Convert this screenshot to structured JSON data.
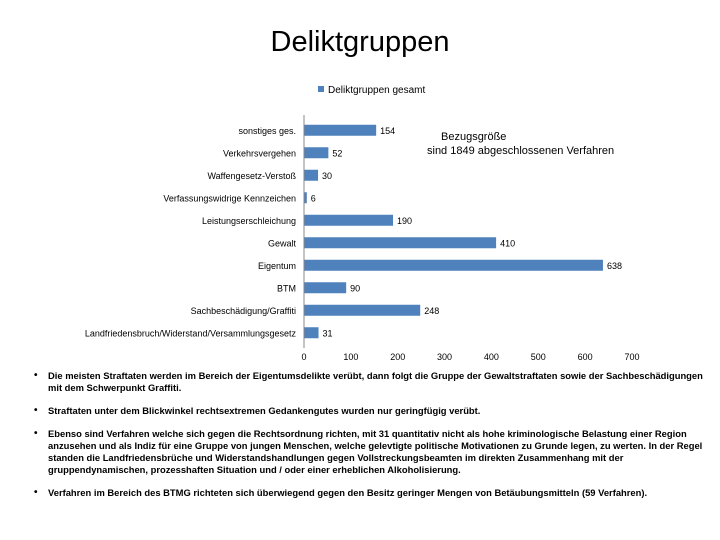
{
  "page": {
    "title": "Deliktgruppen"
  },
  "chart_data": {
    "type": "bar",
    "orientation": "horizontal",
    "title": "Deliktgruppen",
    "legend": {
      "label": "Deliktgruppen gesamt",
      "placement": "top"
    },
    "annotation": {
      "line1": "Bezugsgröße",
      "line2": "sind 1849  abgeschlossenen Verfahren"
    },
    "categories": [
      "sonstiges ges.",
      "Verkehrsvergehen",
      "Waffengesetz-Verstoß",
      "Verfassungswidrige Kennzeichen",
      "Leistungserschleichung",
      "Gewalt",
      "Eigentum",
      "BTM",
      "Sachbeschädigung/Graffiti",
      "Landfriedensbruch/Widerstand/Versammlungsgesetz"
    ],
    "series": [
      {
        "name": "Deliktgruppen gesamt",
        "values": [
          154,
          52,
          30,
          6,
          190,
          410,
          638,
          90,
          248,
          31
        ]
      }
    ],
    "xlim": [
      0,
      700
    ],
    "xticks": [
      0,
      100,
      200,
      300,
      400,
      500,
      600,
      700
    ],
    "grid": false,
    "color": "#4f81bd"
  },
  "bullets": [
    "Die meisten Straftaten werden im Bereich der Eigentumsdelikte verübt, dann folgt die Gruppe der Gewaltstraftaten sowie der Sachbeschädigungen mit dem Schwerpunkt  Graffiti.",
    "Straftaten unter dem Blickwinkel rechtsextremen Gedankengutes  wurden nur geringfügig verübt.",
    "Ebenso sind Verfahren welche sich gegen die Rechtsordnung richten,  mit  31 quantitativ nicht als hohe kriminologische  Belastung einer Region anzusehen und  als Indiz für eine Gruppe von jungen Menschen, welche gelevtigte politische  Motivationen zu Grunde legen, zu werten.  In der Regel standen die Landfriedensbrüche und Widerstandshandlungen gegen Vollstreckungsbeamten im direkten  Zusammenhang mit der gruppendynamischen, prozesshaften Situation und / oder einer erheblichen  Alkoholisierung.",
    "Verfahren im Bereich des BTMG richteten sich überwiegend gegen den Besitz geringer Mengen von Betäubungsmitteln (59 Verfahren)."
  ],
  "bullet_symbol": "•"
}
